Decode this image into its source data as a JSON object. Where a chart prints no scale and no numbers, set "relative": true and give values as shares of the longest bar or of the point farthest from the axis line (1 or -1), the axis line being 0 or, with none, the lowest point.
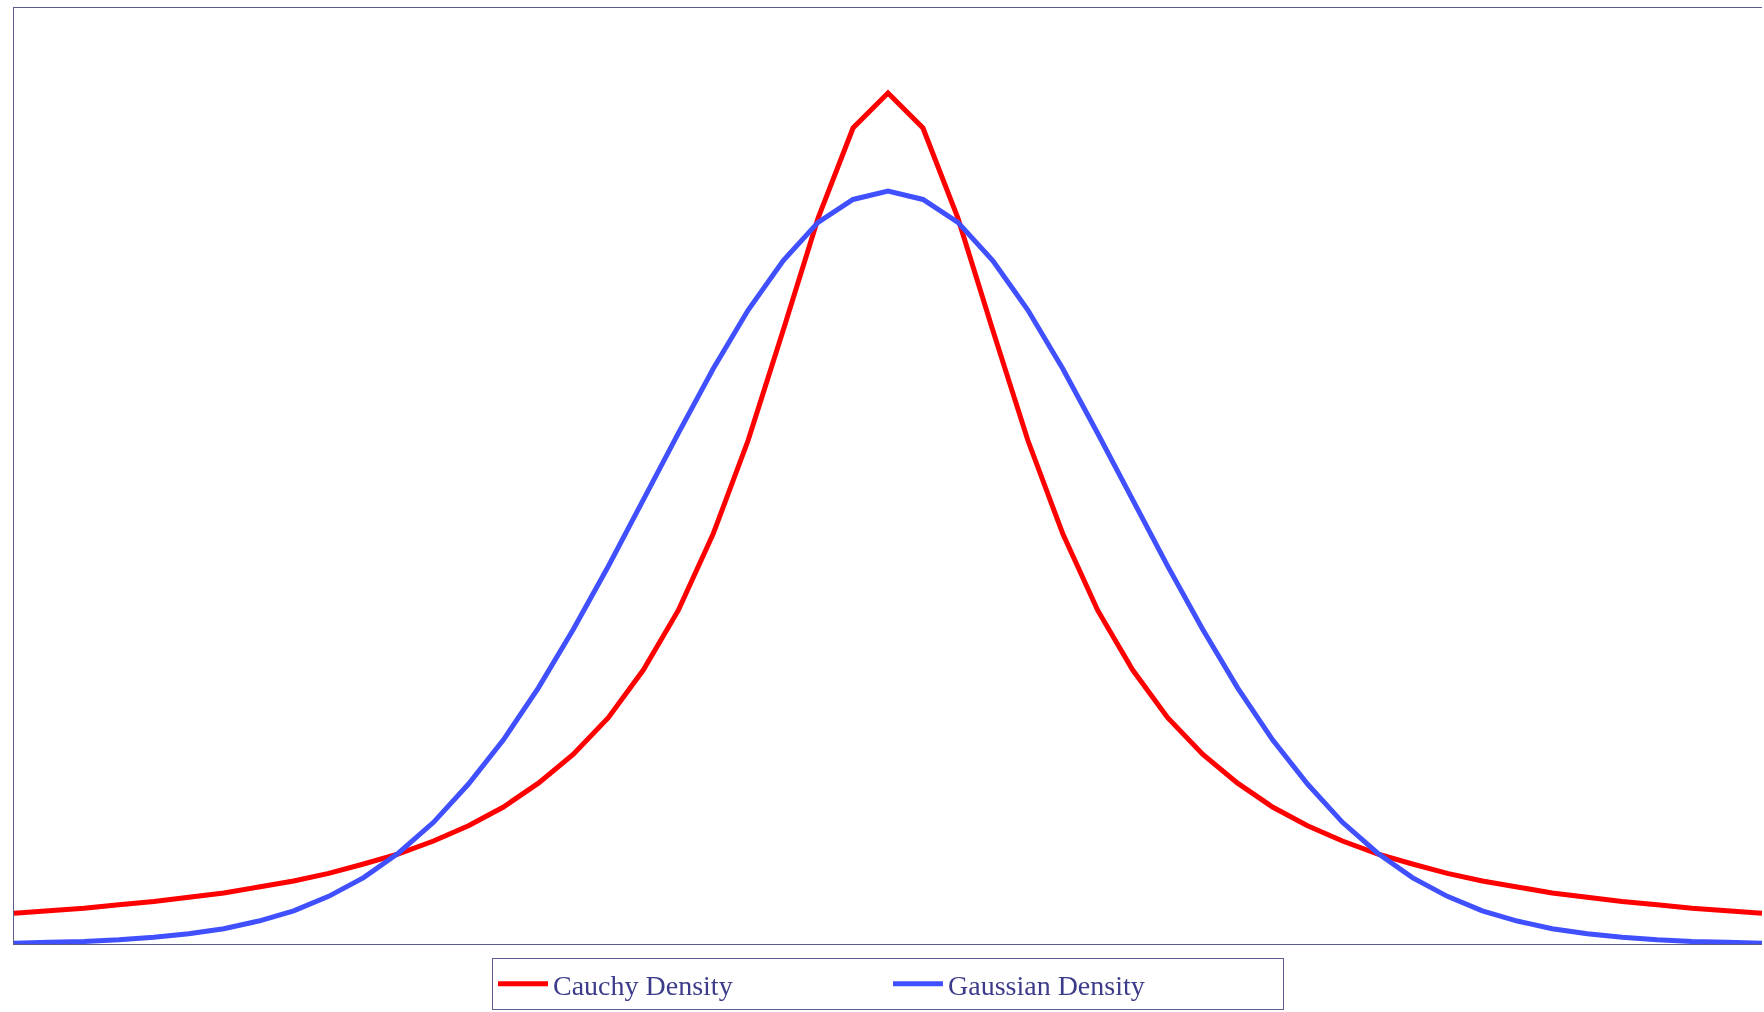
{
  "chart_data": {
    "type": "line",
    "relative": true,
    "legend": "bottom",
    "marker": "none",
    "categories": [
      null,
      null,
      null,
      null,
      null,
      null,
      null,
      null,
      null,
      null,
      null,
      null,
      null,
      null,
      null,
      null,
      null,
      null,
      null,
      null,
      null,
      null,
      null,
      null,
      null,
      null,
      null,
      null,
      null,
      null,
      null,
      null,
      null,
      null,
      null,
      null,
      null,
      null,
      null,
      null,
      null,
      null,
      null,
      null,
      null,
      null,
      null,
      null,
      null,
      null,
      null
    ],
    "series": [
      {
        "name": "Cauchy Density",
        "color": "#ff0000",
        "values": [
          0.036,
          0.039,
          0.042,
          0.046,
          0.05,
          0.055,
          0.06,
          0.067,
          0.074,
          0.083,
          0.094,
          0.106,
          0.121,
          0.139,
          0.161,
          0.189,
          0.223,
          0.266,
          0.322,
          0.392,
          0.482,
          0.592,
          0.721,
          0.853,
          0.959,
          1,
          0.959,
          0.853,
          0.721,
          0.592,
          0.482,
          0.392,
          0.322,
          0.266,
          0.223,
          0.189,
          0.161,
          0.139,
          0.121,
          0.106,
          0.094,
          0.083,
          0.074,
          0.067,
          0.06,
          0.055,
          0.05,
          0.046,
          0.042,
          0.039,
          0.036
        ]
      },
      {
        "name": "Gaussian Density",
        "color": "#4050ff",
        "values": [
          0.001,
          0.002,
          0.003,
          0.005,
          0.008,
          0.012,
          0.018,
          0.027,
          0.039,
          0.056,
          0.078,
          0.107,
          0.143,
          0.188,
          0.24,
          0.301,
          0.37,
          0.444,
          0.522,
          0.6,
          0.676,
          0.745,
          0.803,
          0.848,
          0.875,
          0.885,
          0.875,
          0.848,
          0.803,
          0.745,
          0.676,
          0.6,
          0.522,
          0.444,
          0.37,
          0.301,
          0.24,
          0.188,
          0.143,
          0.107,
          0.078,
          0.056,
          0.039,
          0.027,
          0.018,
          0.012,
          0.008,
          0.005,
          0.003,
          0.002,
          0.001
        ]
      }
    ]
  }
}
